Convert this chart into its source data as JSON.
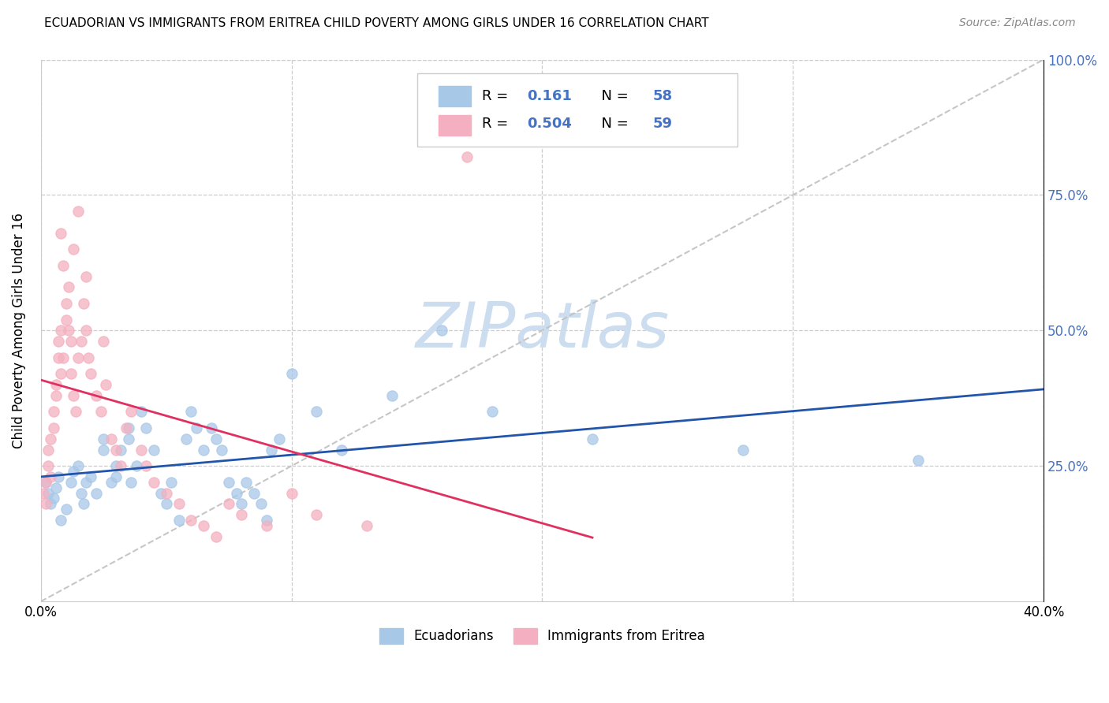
{
  "title": "ECUADORIAN VS IMMIGRANTS FROM ERITREA CHILD POVERTY AMONG GIRLS UNDER 16 CORRELATION CHART",
  "source": "Source: ZipAtlas.com",
  "ylabel": "Child Poverty Among Girls Under 16",
  "xlim": [
    0.0,
    0.4
  ],
  "ylim": [
    0.0,
    1.0
  ],
  "x_ticks": [
    0.0,
    0.1,
    0.2,
    0.3,
    0.4
  ],
  "x_tick_labels": [
    "0.0%",
    "",
    "",
    "",
    "40.0%"
  ],
  "y_ticks_right": [
    0.25,
    0.5,
    0.75,
    1.0
  ],
  "y_tick_labels_right": [
    "25.0%",
    "50.0%",
    "75.0%",
    "100.0%"
  ],
  "ecuadorians_color": "#a8c8e8",
  "eritrea_color": "#f4b0c0",
  "trendline_ecuador_color": "#2255aa",
  "trendline_eritrea_color": "#e03060",
  "diagonal_color": "#c0c0c0",
  "watermark": "ZIPatlas",
  "watermark_color": "#ccddef",
  "background_color": "#ffffff",
  "right_axis_color": "#4472c4",
  "ecuadorians_x": [
    0.002,
    0.003,
    0.004,
    0.005,
    0.006,
    0.007,
    0.008,
    0.01,
    0.012,
    0.013,
    0.015,
    0.016,
    0.017,
    0.018,
    0.02,
    0.022,
    0.025,
    0.025,
    0.028,
    0.03,
    0.03,
    0.032,
    0.035,
    0.035,
    0.036,
    0.038,
    0.04,
    0.042,
    0.045,
    0.048,
    0.05,
    0.052,
    0.055,
    0.058,
    0.06,
    0.062,
    0.065,
    0.068,
    0.07,
    0.072,
    0.075,
    0.078,
    0.08,
    0.082,
    0.085,
    0.088,
    0.09,
    0.092,
    0.095,
    0.1,
    0.11,
    0.12,
    0.14,
    0.16,
    0.18,
    0.22,
    0.28,
    0.35
  ],
  "ecuadorians_y": [
    0.22,
    0.2,
    0.18,
    0.19,
    0.21,
    0.23,
    0.15,
    0.17,
    0.22,
    0.24,
    0.25,
    0.2,
    0.18,
    0.22,
    0.23,
    0.2,
    0.3,
    0.28,
    0.22,
    0.25,
    0.23,
    0.28,
    0.32,
    0.3,
    0.22,
    0.25,
    0.35,
    0.32,
    0.28,
    0.2,
    0.18,
    0.22,
    0.15,
    0.3,
    0.35,
    0.32,
    0.28,
    0.32,
    0.3,
    0.28,
    0.22,
    0.2,
    0.18,
    0.22,
    0.2,
    0.18,
    0.15,
    0.28,
    0.3,
    0.42,
    0.35,
    0.28,
    0.38,
    0.5,
    0.35,
    0.3,
    0.28,
    0.26
  ],
  "eritrea_x": [
    0.001,
    0.002,
    0.002,
    0.003,
    0.003,
    0.004,
    0.004,
    0.005,
    0.005,
    0.006,
    0.006,
    0.007,
    0.007,
    0.008,
    0.008,
    0.009,
    0.01,
    0.01,
    0.011,
    0.012,
    0.012,
    0.013,
    0.014,
    0.015,
    0.016,
    0.017,
    0.018,
    0.019,
    0.02,
    0.022,
    0.024,
    0.026,
    0.028,
    0.03,
    0.032,
    0.034,
    0.036,
    0.04,
    0.042,
    0.045,
    0.05,
    0.055,
    0.06,
    0.065,
    0.07,
    0.075,
    0.08,
    0.09,
    0.1,
    0.11,
    0.13,
    0.008,
    0.009,
    0.011,
    0.013,
    0.015,
    0.018,
    0.025,
    0.17
  ],
  "eritrea_y": [
    0.2,
    0.18,
    0.22,
    0.25,
    0.28,
    0.23,
    0.3,
    0.32,
    0.35,
    0.38,
    0.4,
    0.45,
    0.48,
    0.42,
    0.5,
    0.45,
    0.52,
    0.55,
    0.5,
    0.48,
    0.42,
    0.38,
    0.35,
    0.45,
    0.48,
    0.55,
    0.5,
    0.45,
    0.42,
    0.38,
    0.35,
    0.4,
    0.3,
    0.28,
    0.25,
    0.32,
    0.35,
    0.28,
    0.25,
    0.22,
    0.2,
    0.18,
    0.15,
    0.14,
    0.12,
    0.18,
    0.16,
    0.14,
    0.2,
    0.16,
    0.14,
    0.68,
    0.62,
    0.58,
    0.65,
    0.72,
    0.6,
    0.48,
    0.82
  ]
}
